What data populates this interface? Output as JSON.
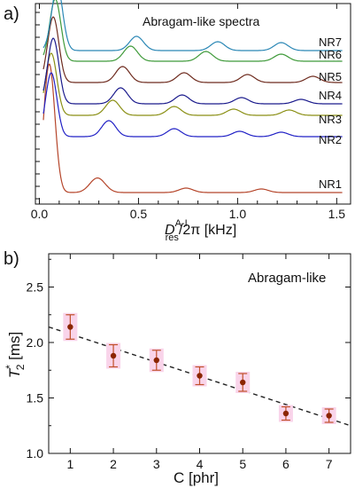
{
  "chart_data": [
    {
      "panel_label": "a)",
      "type": "line",
      "title": "Abragam-like spectra",
      "xlabel": {
        "prefix": "D",
        "sup": "A-I",
        "sub": "res",
        "suffix": "/2π [kHz]"
      },
      "ylabel": "",
      "xlim": [
        -0.02,
        1.57
      ],
      "xticks": [
        "0.0",
        "0.5",
        "1.0",
        "1.5"
      ],
      "xtick_values": [
        0.0,
        0.5,
        1.0,
        1.5
      ],
      "grid": false,
      "y_ticks_shown": false,
      "series": [
        {
          "name": "NR1",
          "color": "#b5452a",
          "peaks": [
            [
              0.05,
              145
            ],
            [
              0.28,
              10
            ],
            [
              0.31,
              8
            ],
            [
              0.74,
              5
            ],
            [
              1.12,
              4
            ]
          ]
        },
        {
          "name": "NR2",
          "color": "#2222c6",
          "peaks": [
            [
              0.06,
              72
            ],
            [
              0.35,
              18
            ],
            [
              0.68,
              9
            ],
            [
              1.01,
              6
            ],
            [
              1.22,
              5
            ]
          ]
        },
        {
          "name": "NR3",
          "color": "#8a8f14",
          "peaks": [
            [
              0.06,
              70
            ],
            [
              0.37,
              17
            ],
            [
              0.68,
              10
            ],
            [
              0.98,
              7
            ],
            [
              1.26,
              6
            ]
          ]
        },
        {
          "name": "NR4",
          "color": "#1a1a8c",
          "peaks": [
            [
              0.07,
              74
            ],
            [
              0.41,
              18
            ],
            [
              0.72,
              10
            ],
            [
              1.02,
              7
            ],
            [
              1.32,
              5
            ]
          ]
        },
        {
          "name": "NR5",
          "color": "#6e2b1e",
          "peaks": [
            [
              0.07,
              74
            ],
            [
              0.42,
              18
            ],
            [
              0.73,
              11
            ],
            [
              1.05,
              9
            ],
            [
              1.38,
              7
            ]
          ]
        },
        {
          "name": "NR6",
          "color": "#3f9a3a",
          "peaks": [
            [
              0.08,
              70
            ],
            [
              0.46,
              17
            ],
            [
              0.84,
              11
            ],
            [
              1.22,
              8
            ]
          ]
        },
        {
          "name": "NR7",
          "color": "#2a87b5",
          "peaks": [
            [
              0.09,
              72
            ],
            [
              0.49,
              16
            ],
            [
              0.9,
              10
            ],
            [
              1.22,
              9
            ]
          ]
        }
      ]
    },
    {
      "panel_label": "b)",
      "type": "scatter",
      "title": "Abragam-like",
      "xlabel": "C [phr]",
      "ylabel": {
        "main": "T",
        "sup": "*",
        "sub": "2",
        "suffix": " [ms]"
      },
      "xlim": [
        0.5,
        7.5
      ],
      "ylim": [
        1.0,
        2.8
      ],
      "xticks": [
        1,
        2,
        3,
        4,
        5,
        6,
        7
      ],
      "yticks": [
        "1.0",
        "1.5",
        "2.0",
        "2.5"
      ],
      "ytick_values": [
        1.0,
        1.5,
        2.0,
        2.5
      ],
      "grid": false,
      "points": [
        {
          "x": 1,
          "y": 2.14,
          "err": 0.11
        },
        {
          "x": 2,
          "y": 1.88,
          "err": 0.1
        },
        {
          "x": 3,
          "y": 1.84,
          "err": 0.09
        },
        {
          "x": 4,
          "y": 1.7,
          "err": 0.08
        },
        {
          "x": 5,
          "y": 1.64,
          "err": 0.08
        },
        {
          "x": 6,
          "y": 1.36,
          "err": 0.06
        },
        {
          "x": 7,
          "y": 1.34,
          "err": 0.06
        }
      ],
      "fit_line": {
        "x": [
          0.5,
          7.5
        ],
        "y": [
          2.14,
          1.25
        ],
        "style": "dashed"
      },
      "colors": {
        "marker": "#8b2500",
        "errorbar": "#c0502a",
        "highlight": "#f9d4ea",
        "fit": "#222222"
      }
    }
  ]
}
